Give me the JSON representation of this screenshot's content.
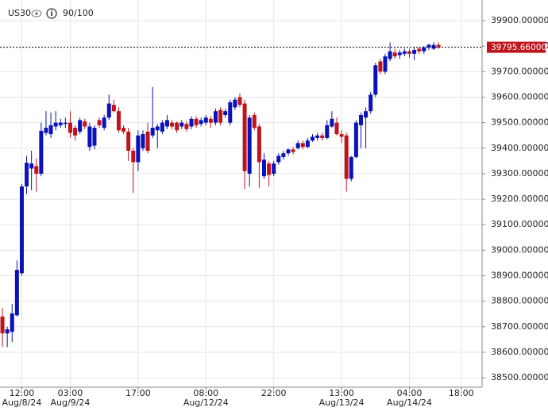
{
  "header": {
    "symbol": "US30",
    "rating": "90/100"
  },
  "chart_data": {
    "type": "candlestick",
    "up_color": "#0a12b8",
    "down_color": "#c0141c",
    "grid": true,
    "open": [
      38740,
      38674,
      38680,
      38745,
      38910,
      39250,
      39320,
      39330,
      39300,
      39460,
      39455,
      39485,
      39490,
      39495,
      39500,
      39480,
      39465,
      39505,
      39405,
      39410,
      39510,
      39480,
      39520,
      39570,
      39545,
      39480,
      39465,
      39390,
      39345,
      39400,
      39465,
      39450,
      39470,
      39465,
      39485,
      39500,
      39500,
      39485,
      39495,
      39485,
      39515,
      39495,
      39500,
      39515,
      39500,
      39550,
      39530,
      39500,
      39560,
      39600,
      39575,
      39300,
      39530,
      39485,
      39290,
      39340,
      39300,
      39345,
      39365,
      39380,
      39395,
      39400,
      39420,
      39405,
      39430,
      39440,
      39450,
      39440,
      39485,
      39500,
      39455,
      39450,
      39280,
      39365,
      39490,
      39520,
      39545,
      39610,
      39740,
      39700,
      39750,
      39775,
      39765,
      39770,
      39780,
      39770,
      39790,
      39780,
      39795,
      39790,
      39805
    ],
    "high": [
      38774,
      38700,
      38790,
      38960,
      39260,
      39370,
      39390,
      39360,
      39500,
      39545,
      39540,
      39545,
      39515,
      39520,
      39545,
      39490,
      39520,
      39515,
      39500,
      39490,
      39520,
      39530,
      39610,
      39590,
      39560,
      39490,
      39480,
      39400,
      39470,
      39470,
      39500,
      39640,
      39495,
      39510,
      39530,
      39510,
      39505,
      39510,
      39505,
      39525,
      39525,
      39520,
      39530,
      39525,
      39555,
      39560,
      39555,
      39590,
      39600,
      39615,
      39590,
      39530,
      39540,
      39495,
      39380,
      39350,
      39350,
      39380,
      39390,
      39400,
      39405,
      39430,
      39430,
      39440,
      39455,
      39460,
      39460,
      39510,
      39545,
      39520,
      39470,
      39460,
      39370,
      39510,
      39540,
      39560,
      39620,
      39735,
      39750,
      39770,
      39815,
      39790,
      39785,
      39790,
      39790,
      39795,
      39795,
      39800,
      39810,
      39815,
      39815
    ],
    "low": [
      38621,
      38620,
      38640,
      38740,
      38900,
      39220,
      39235,
      39230,
      39290,
      39450,
      39440,
      39470,
      39480,
      39480,
      39440,
      39430,
      39455,
      39475,
      39390,
      39395,
      39480,
      39470,
      39510,
      39540,
      39460,
      39455,
      39350,
      39225,
      39310,
      39390,
      39380,
      39440,
      39400,
      39455,
      39475,
      39475,
      39460,
      39475,
      39465,
      39475,
      39480,
      39485,
      39490,
      39480,
      39490,
      39490,
      39520,
      39490,
      39550,
      39560,
      39240,
      39250,
      39470,
      39245,
      39280,
      39250,
      39290,
      39335,
      39355,
      39370,
      39375,
      39395,
      39395,
      39400,
      39425,
      39430,
      39430,
      39435,
      39480,
      39450,
      39420,
      39230,
      39270,
      39360,
      39400,
      39400,
      39535,
      39600,
      39690,
      39690,
      39740,
      39750,
      39750,
      39760,
      39755,
      39745,
      39770,
      39770,
      39785,
      39785,
      39790
    ],
    "close": [
      38674,
      38690,
      38752,
      38923,
      39250,
      39343,
      39340,
      39300,
      39468,
      39480,
      39490,
      39500,
      39500,
      39500,
      39460,
      39450,
      39510,
      39485,
      39485,
      39480,
      39490,
      39520,
      39575,
      39545,
      39470,
      39465,
      39390,
      39345,
      39450,
      39455,
      39390,
      39480,
      39485,
      39500,
      39510,
      39485,
      39470,
      39500,
      39475,
      39515,
      39490,
      39510,
      39520,
      39500,
      39545,
      39500,
      39545,
      39580,
      39590,
      39570,
      39310,
      39520,
      39480,
      39345,
      39355,
      39295,
      39340,
      39370,
      39380,
      39395,
      39385,
      39420,
      39405,
      39430,
      39445,
      39450,
      39440,
      39490,
      39515,
      39455,
      39445,
      39280,
      39365,
      39500,
      39530,
      39545,
      39610,
      39725,
      39700,
      39760,
      39780,
      39760,
      39775,
      39780,
      39770,
      39785,
      39780,
      39795,
      39805,
      39805,
      39795.66
    ],
    "last_price": {
      "value": 39795.66,
      "label": "39795.66000"
    },
    "xlim": [
      -0.5,
      99
    ],
    "xticks": [
      {
        "value": 4,
        "label": "12:00",
        "date": "Aug/8/24"
      },
      {
        "value": 14,
        "label": "03:00",
        "date": "Aug/9/24"
      },
      {
        "value": 28,
        "label": "17:00"
      },
      {
        "value": 42,
        "label": "08:00",
        "date": "Aug/12/24"
      },
      {
        "value": 56,
        "label": "22:00"
      },
      {
        "value": 70,
        "label": "13:00",
        "date": "Aug/13/24"
      },
      {
        "value": 84,
        "label": "04:00",
        "date": "Aug/14/24"
      },
      {
        "value": 94.7,
        "label": "18:00"
      }
    ],
    "ylim": [
      38463,
      39981
    ],
    "yticks": [
      {
        "value": 38500,
        "label": "38500.00000"
      },
      {
        "value": 38600,
        "label": "38600.00000"
      },
      {
        "value": 38700,
        "label": "38700.00000"
      },
      {
        "value": 38800,
        "label": "38800.00000"
      },
      {
        "value": 38900,
        "label": "38900.00000"
      },
      {
        "value": 39000,
        "label": "39000.00000"
      },
      {
        "value": 39100,
        "label": "39100.00000"
      },
      {
        "value": 39200,
        "label": "39200.00000"
      },
      {
        "value": 39300,
        "label": "39300.00000"
      },
      {
        "value": 39400,
        "label": "39400.00000"
      },
      {
        "value": 39500,
        "label": "39500.00000"
      },
      {
        "value": 39600,
        "label": "39600.00000"
      },
      {
        "value": 39700,
        "label": "39700.00000"
      },
      {
        "value": 39800,
        "label": "39800.00000"
      },
      {
        "value": 39900,
        "label": "39900.00000"
      }
    ]
  }
}
